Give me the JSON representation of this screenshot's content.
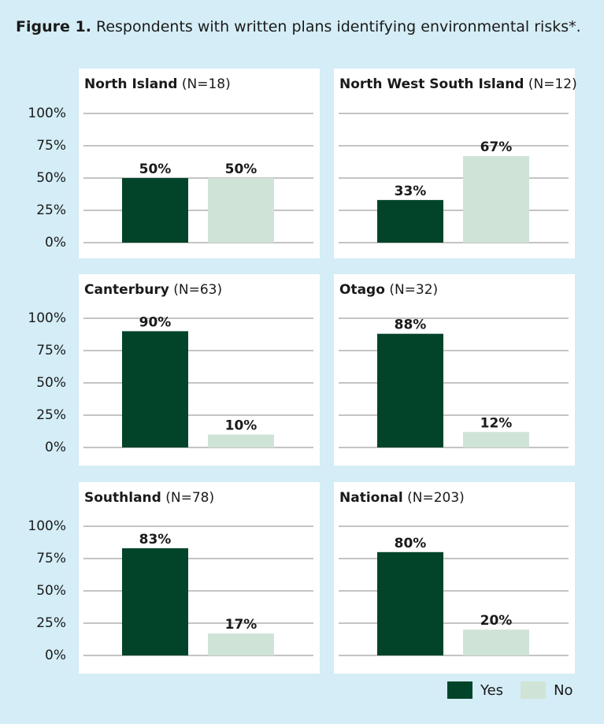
{
  "figure": {
    "label": "Figure 1.",
    "caption": "Respondents with written plans identifying environmental risks*."
  },
  "colors": {
    "yes": "#02442a",
    "no": "#cfe4d6",
    "grid": "#8a8a8a",
    "background": "#d4edf6"
  },
  "chart_data": [
    {
      "type": "bar",
      "title_region": "North Island",
      "title_n": "(N=18)",
      "categories": [
        "Yes",
        "No"
      ],
      "values": [
        50,
        50
      ],
      "labels": [
        "50%",
        "50%"
      ],
      "ylim": [
        0,
        100
      ],
      "yticks": [
        "100%",
        "75%",
        "50%",
        "25%",
        "0%"
      ],
      "grid": true
    },
    {
      "type": "bar",
      "title_region": "North West South Island",
      "title_n": "(N=12)",
      "categories": [
        "Yes",
        "No"
      ],
      "values": [
        33,
        67
      ],
      "labels": [
        "33%",
        "67%"
      ],
      "ylim": [
        0,
        100
      ],
      "yticks": [],
      "grid": true
    },
    {
      "type": "bar",
      "title_region": "Canterbury",
      "title_n": "(N=63)",
      "categories": [
        "Yes",
        "No"
      ],
      "values": [
        90,
        10
      ],
      "labels": [
        "90%",
        "10%"
      ],
      "ylim": [
        0,
        100
      ],
      "yticks": [
        "100%",
        "75%",
        "50%",
        "25%",
        "0%"
      ],
      "grid": true
    },
    {
      "type": "bar",
      "title_region": "Otago",
      "title_n": "(N=32)",
      "categories": [
        "Yes",
        "No"
      ],
      "values": [
        88,
        12
      ],
      "labels": [
        "88%",
        "12%"
      ],
      "ylim": [
        0,
        100
      ],
      "yticks": [],
      "grid": true
    },
    {
      "type": "bar",
      "title_region": "Southland",
      "title_n": "(N=78)",
      "categories": [
        "Yes",
        "No"
      ],
      "values": [
        83,
        17
      ],
      "labels": [
        "83%",
        "17%"
      ],
      "ylim": [
        0,
        100
      ],
      "yticks": [
        "100%",
        "75%",
        "50%",
        "25%",
        "0%"
      ],
      "grid": true
    },
    {
      "type": "bar",
      "title_region": "National",
      "title_n": "(N=203)",
      "categories": [
        "Yes",
        "No"
      ],
      "values": [
        80,
        20
      ],
      "labels": [
        "80%",
        "20%"
      ],
      "ylim": [
        0,
        100
      ],
      "yticks": [],
      "grid": true
    }
  ],
  "legend": [
    {
      "label": "Yes",
      "color": "#02442a"
    },
    {
      "label": "No",
      "color": "#cfe4d6"
    }
  ]
}
